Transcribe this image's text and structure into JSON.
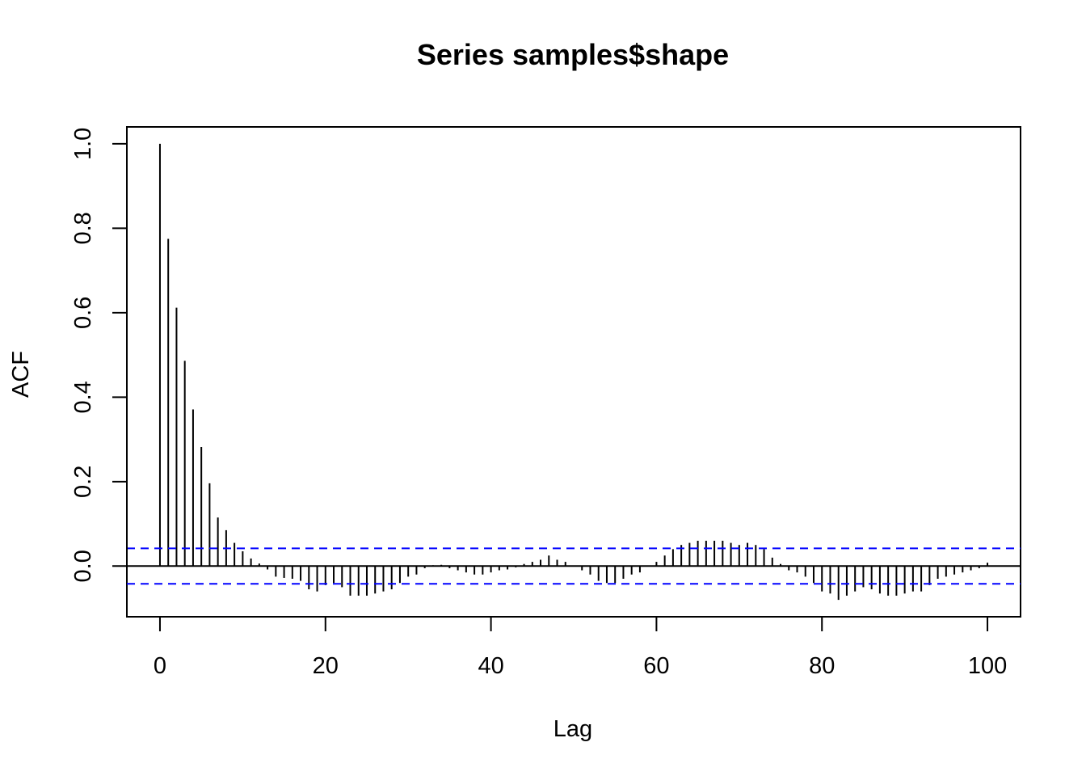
{
  "chart_data": {
    "type": "bar",
    "title": "Series  samples$shape",
    "xlabel": "Lag",
    "ylabel": "ACF",
    "xlim": [
      -4,
      104
    ],
    "ylim": [
      -0.12,
      1.04
    ],
    "x_ticks": [
      0,
      20,
      40,
      60,
      80,
      100
    ],
    "x_tick_labels": [
      "0",
      "20",
      "40",
      "60",
      "80",
      "100"
    ],
    "y_ticks": [
      0.0,
      0.2,
      0.4,
      0.6,
      0.8,
      1.0
    ],
    "y_tick_labels": [
      "0.0",
      "0.2",
      "0.4",
      "0.6",
      "0.8",
      "1.0"
    ],
    "confidence_bound": 0.042,
    "colors": {
      "bars": "#000000",
      "bounds": "#0000ff",
      "axes": "#000000"
    },
    "grid": false,
    "lags": [
      0,
      1,
      2,
      3,
      4,
      5,
      6,
      7,
      8,
      9,
      10,
      11,
      12,
      13,
      14,
      15,
      16,
      17,
      18,
      19,
      20,
      21,
      22,
      23,
      24,
      25,
      26,
      27,
      28,
      29,
      30,
      31,
      32,
      33,
      34,
      35,
      36,
      37,
      38,
      39,
      40,
      41,
      42,
      43,
      44,
      45,
      46,
      47,
      48,
      49,
      50,
      51,
      52,
      53,
      54,
      55,
      56,
      57,
      58,
      59,
      60,
      61,
      62,
      63,
      64,
      65,
      66,
      67,
      68,
      69,
      70,
      71,
      72,
      73,
      74,
      75,
      76,
      77,
      78,
      79,
      80,
      81,
      82,
      83,
      84,
      85,
      86,
      87,
      88,
      89,
      90,
      91,
      92,
      93,
      94,
      95,
      96,
      97,
      98,
      99,
      100
    ],
    "values": [
      1.0,
      0.775,
      0.612,
      0.486,
      0.371,
      0.282,
      0.196,
      0.115,
      0.085,
      0.055,
      0.035,
      0.018,
      0.006,
      -0.008,
      -0.025,
      -0.028,
      -0.03,
      -0.035,
      -0.055,
      -0.06,
      -0.045,
      -0.04,
      -0.05,
      -0.07,
      -0.07,
      -0.07,
      -0.065,
      -0.06,
      -0.055,
      -0.04,
      -0.025,
      -0.02,
      -0.005,
      0.002,
      0.003,
      -0.005,
      -0.01,
      -0.015,
      -0.02,
      -0.02,
      -0.015,
      -0.01,
      -0.008,
      -0.003,
      0.005,
      0.01,
      0.015,
      0.025,
      0.015,
      0.01,
      0.0,
      -0.01,
      -0.02,
      -0.035,
      -0.04,
      -0.04,
      -0.03,
      -0.02,
      -0.015,
      0.0,
      0.01,
      0.025,
      0.04,
      0.05,
      0.055,
      0.06,
      0.06,
      0.06,
      0.06,
      0.055,
      0.05,
      0.055,
      0.05,
      0.04,
      0.02,
      0.005,
      -0.01,
      -0.015,
      -0.025,
      -0.04,
      -0.06,
      -0.065,
      -0.08,
      -0.07,
      -0.06,
      -0.05,
      -0.055,
      -0.065,
      -0.07,
      -0.07,
      -0.065,
      -0.06,
      -0.06,
      -0.045,
      -0.03,
      -0.025,
      -0.02,
      -0.015,
      -0.01,
      -0.005,
      0.008
    ]
  }
}
